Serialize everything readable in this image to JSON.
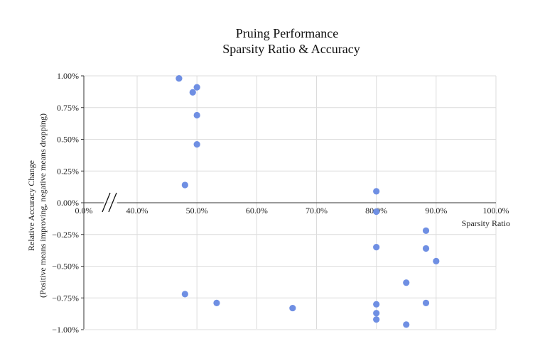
{
  "chart_data": {
    "type": "scatter",
    "title": "Pruing Performance",
    "subtitle": "Sparsity Ratio & Accuracy",
    "xlabel": "Sparsity Ratio",
    "ylabel": "Relative Accuracy Change",
    "ylabel_sub": "(Positive means improving, negative means dropping)",
    "xlim": [
      0,
      100
    ],
    "ylim": [
      -1.0,
      1.0
    ],
    "axis_break": true,
    "grid": true,
    "x_tick_values": [
      0,
      40,
      50,
      60,
      70,
      80,
      90,
      100
    ],
    "x_tick_labels": [
      "0.0%",
      "40.0%",
      "50.0%",
      "60.0%",
      "70.0%",
      "80.0%",
      "90.0%",
      "100.0%"
    ],
    "y_tick_values": [
      1.0,
      0.75,
      0.5,
      0.25,
      0.0,
      -0.25,
      -0.5,
      -0.75,
      -1.0
    ],
    "y_tick_labels": [
      "1.00%",
      "0.75%",
      "0.50%",
      "0.25%",
      "0.00%",
      "−0.25%",
      "−0.50%",
      "−0.75%",
      "−1.00%"
    ],
    "point_color": "#6f8fe3",
    "points": [
      {
        "x": 47.0,
        "y": 0.98
      },
      {
        "x": 50.0,
        "y": 0.91
      },
      {
        "x": 49.3,
        "y": 0.87
      },
      {
        "x": 50.0,
        "y": 0.69
      },
      {
        "x": 50.0,
        "y": 0.46
      },
      {
        "x": 48.0,
        "y": 0.14
      },
      {
        "x": 80.0,
        "y": 0.09
      },
      {
        "x": 80.0,
        "y": -0.07
      },
      {
        "x": 88.3,
        "y": -0.22
      },
      {
        "x": 80.0,
        "y": -0.35
      },
      {
        "x": 88.3,
        "y": -0.36
      },
      {
        "x": 90.0,
        "y": -0.46
      },
      {
        "x": 85.0,
        "y": -0.63
      },
      {
        "x": 48.0,
        "y": -0.72
      },
      {
        "x": 53.3,
        "y": -0.79
      },
      {
        "x": 88.3,
        "y": -0.79
      },
      {
        "x": 80.0,
        "y": -0.8
      },
      {
        "x": 66.0,
        "y": -0.83
      },
      {
        "x": 80.0,
        "y": -0.87
      },
      {
        "x": 80.0,
        "y": -0.92
      },
      {
        "x": 85.0,
        "y": -0.96
      }
    ]
  }
}
